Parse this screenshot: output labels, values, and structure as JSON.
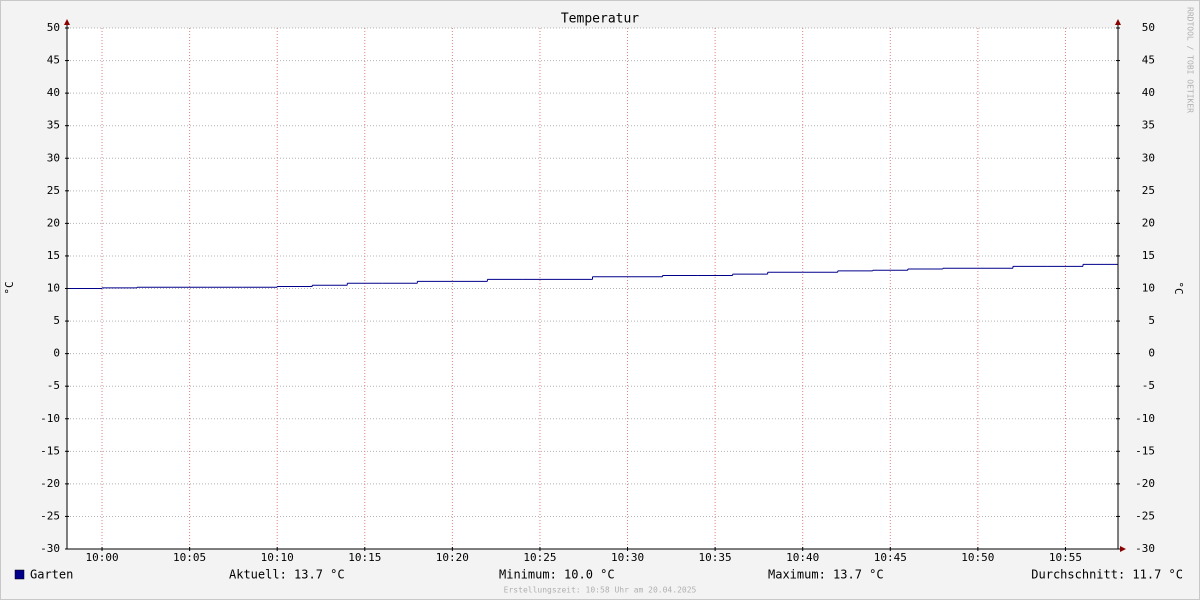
{
  "chart_data": {
    "type": "line",
    "step": true,
    "title": "Temperatur",
    "y_label": "°C",
    "x": [
      598,
      600,
      602,
      604,
      606,
      608,
      610,
      612,
      614,
      616,
      618,
      620,
      622,
      624,
      626,
      628,
      630,
      632,
      634,
      636,
      638,
      640,
      642,
      644,
      646,
      648,
      650,
      652,
      654,
      656,
      658
    ],
    "series": [
      {
        "name": "Garten",
        "color": "#00008b",
        "values": [
          10.0,
          10.1,
          10.2,
          10.2,
          10.2,
          10.2,
          10.3,
          10.5,
          10.8,
          10.8,
          11.1,
          11.1,
          11.4,
          11.4,
          11.4,
          11.8,
          11.8,
          12.0,
          12.0,
          12.2,
          12.5,
          12.5,
          12.7,
          12.8,
          13.0,
          13.1,
          13.1,
          13.4,
          13.4,
          13.7,
          13.7
        ]
      }
    ],
    "xlim": [
      598,
      658
    ],
    "xticks": [
      {
        "value": 600,
        "label": "10:00"
      },
      {
        "value": 605,
        "label": "10:05"
      },
      {
        "value": 610,
        "label": "10:10"
      },
      {
        "value": 615,
        "label": "10:15"
      },
      {
        "value": 620,
        "label": "10:20"
      },
      {
        "value": 625,
        "label": "10:25"
      },
      {
        "value": 630,
        "label": "10:30"
      },
      {
        "value": 635,
        "label": "10:35"
      },
      {
        "value": 640,
        "label": "10:40"
      },
      {
        "value": 645,
        "label": "10:45"
      },
      {
        "value": 650,
        "label": "10:50"
      },
      {
        "value": 655,
        "label": "10:55"
      }
    ],
    "ylim": [
      -30,
      50
    ],
    "yticks": [
      -30,
      -25,
      -20,
      -15,
      -10,
      -5,
      0,
      5,
      10,
      15,
      20,
      25,
      30,
      35,
      40,
      45,
      50
    ],
    "grid": true,
    "legend_stats": [
      "Aktuell: 13.7 °C",
      "Minimum: 10.0 °C",
      "Maximum: 13.7 °C",
      "Durchschnitt: 11.7 °C"
    ],
    "watermark": "RRDTOOL / TOBI OETIKER",
    "footer": "Erstellungszeit: 10:58 Uhr am 20.04.2025"
  }
}
